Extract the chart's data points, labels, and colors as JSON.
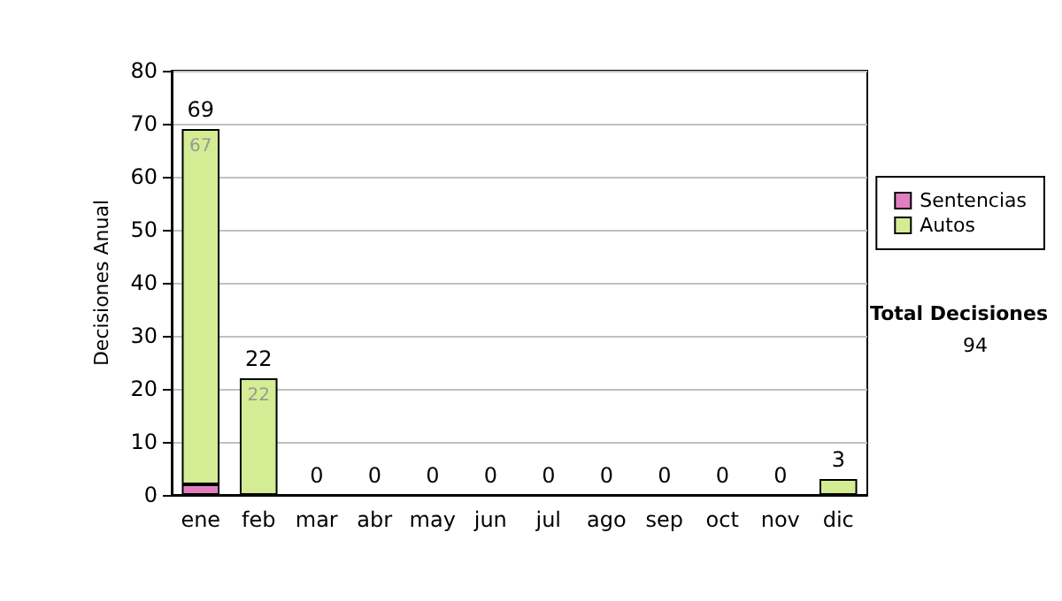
{
  "chart_data": {
    "type": "bar",
    "stacked": true,
    "ylabel": "Decisiones Anual",
    "categories": [
      "ene",
      "feb",
      "mar",
      "abr",
      "may",
      "jun",
      "jul",
      "ago",
      "sep",
      "oct",
      "nov",
      "dic"
    ],
    "series": [
      {
        "name": "Sentencias",
        "color": "#e07fc0",
        "values": [
          2,
          0,
          0,
          0,
          0,
          0,
          0,
          0,
          0,
          0,
          0,
          0
        ]
      },
      {
        "name": "Autos",
        "color": "#d4ec94",
        "values": [
          67,
          22,
          0,
          0,
          0,
          0,
          0,
          0,
          0,
          0,
          0,
          3
        ],
        "value_labels": [
          "67",
          "22",
          null,
          null,
          null,
          null,
          null,
          null,
          null,
          null,
          null,
          null
        ]
      }
    ],
    "totals": [
      "69",
      "22",
      "0",
      "0",
      "0",
      "0",
      "0",
      "0",
      "0",
      "0",
      "0",
      "3"
    ],
    "ylim": [
      0,
      80
    ],
    "yticks": [
      0,
      10,
      20,
      30,
      40,
      50,
      60,
      70,
      80
    ],
    "grid": "y",
    "legend": "right",
    "annotations": [
      "Total Decisiones",
      "94"
    ]
  }
}
